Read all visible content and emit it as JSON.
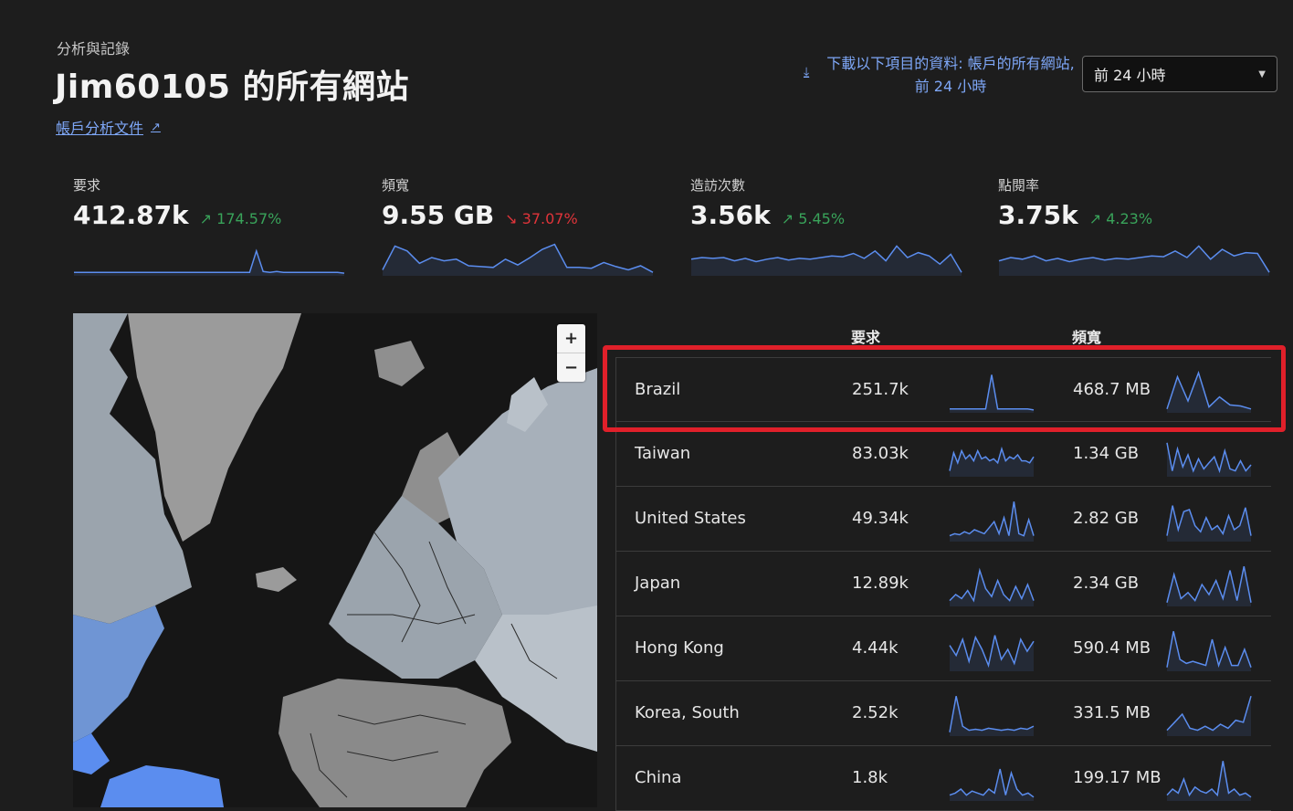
{
  "header": {
    "breadcrumb": "分析與記錄",
    "title": "Jim60105 的所有網站",
    "doc_link": "帳戶分析文件"
  },
  "download": {
    "icon": "download-icon",
    "text": "下載以下項目的資料: 帳戶的所有網站, 前 24 小時"
  },
  "time_range": {
    "selected": "前 24 小時"
  },
  "metrics": [
    {
      "label": "要求",
      "value": "412.87k",
      "change": "174.57%",
      "direction": "up",
      "spark": [
        2,
        2,
        2,
        2,
        2,
        2,
        2,
        2,
        2,
        2,
        2,
        2,
        2,
        2,
        2,
        2,
        2,
        2,
        2,
        2,
        2,
        2,
        2,
        2,
        2,
        2,
        2,
        28,
        3,
        2,
        3,
        2,
        2,
        2,
        2,
        2,
        2,
        2,
        2,
        2,
        1
      ]
    },
    {
      "label": "頻寬",
      "value": "9.55 GB",
      "change": "37.07%",
      "direction": "down",
      "spark": [
        5,
        34,
        28,
        13,
        20,
        16,
        18,
        10,
        9,
        8,
        18,
        11,
        20,
        30,
        36,
        8,
        8,
        7,
        14,
        9,
        5,
        10,
        2
      ]
    },
    {
      "label": "造訪次數",
      "value": "3.56k",
      "change": "5.45%",
      "direction": "up",
      "spark": [
        18,
        20,
        19,
        20,
        16,
        19,
        15,
        18,
        20,
        17,
        19,
        18,
        20,
        22,
        21,
        25,
        19,
        28,
        16,
        34,
        20,
        26,
        22,
        12,
        24,
        2
      ]
    },
    {
      "label": "點閱率",
      "value": "3.75k",
      "change": "4.23%",
      "direction": "up",
      "spark": [
        16,
        20,
        18,
        22,
        16,
        19,
        15,
        18,
        20,
        17,
        19,
        18,
        20,
        22,
        21,
        28,
        20,
        34,
        18,
        30,
        22,
        26,
        25,
        2
      ]
    }
  ],
  "map": {
    "zoom_in": "+",
    "zoom_out": "−"
  },
  "table": {
    "columns": {
      "requests": "要求",
      "bandwidth": "頻寬"
    },
    "rows": [
      {
        "country": "Brazil",
        "requests": "251.7k",
        "bandwidth": "468.7 MB",
        "req_spark": [
          2,
          2,
          2,
          2,
          2,
          2,
          2,
          36,
          2,
          2,
          2,
          2,
          2,
          2,
          1
        ],
        "bw_spark": [
          2,
          34,
          10,
          38,
          4,
          14,
          6,
          5,
          2
        ]
      },
      {
        "country": "Taiwan",
        "requests": "83.03k",
        "bandwidth": "1.34 GB",
        "req_spark": [
          4,
          22,
          12,
          24,
          16,
          20,
          14,
          24,
          16,
          18,
          14,
          16,
          12,
          26,
          14,
          18,
          16,
          20,
          14,
          14,
          12,
          18
        ],
        "bw_spark": [
          32,
          4,
          26,
          8,
          20,
          4,
          16,
          6,
          12,
          18,
          4,
          24,
          6,
          4,
          14,
          4,
          10
        ]
      },
      {
        "country": "United States",
        "requests": "49.34k",
        "bandwidth": "2.82 GB",
        "req_spark": [
          4,
          6,
          5,
          8,
          6,
          10,
          8,
          6,
          12,
          18,
          6,
          22,
          4,
          38,
          6,
          4,
          20,
          4
        ],
        "bw_spark": [
          4,
          34,
          10,
          28,
          30,
          14,
          8,
          22,
          10,
          14,
          6,
          24,
          10,
          14,
          32,
          4
        ]
      },
      {
        "country": "Japan",
        "requests": "12.89k",
        "bandwidth": "2.34 GB",
        "req_spark": [
          4,
          10,
          6,
          14,
          4,
          34,
          16,
          8,
          24,
          10,
          4,
          18,
          6,
          20,
          4
        ],
        "bw_spark": [
          2,
          30,
          6,
          12,
          4,
          20,
          10,
          24,
          6,
          34,
          4,
          38,
          2
        ]
      },
      {
        "country": "Hong Kong",
        "requests": "4.44k",
        "bandwidth": "590.4 MB",
        "req_spark": [
          24,
          14,
          30,
          8,
          32,
          20,
          4,
          34,
          10,
          20,
          6,
          30,
          18,
          28
        ],
        "bw_spark": [
          2,
          38,
          10,
          6,
          8,
          6,
          4,
          30,
          4,
          22,
          4,
          4,
          20,
          2
        ]
      },
      {
        "country": "Korea, South",
        "requests": "2.52k",
        "bandwidth": "331.5 MB",
        "req_spark": [
          2,
          38,
          8,
          4,
          5,
          4,
          6,
          5,
          4,
          5,
          4,
          6,
          5,
          8
        ],
        "bw_spark": [
          4,
          12,
          20,
          6,
          4,
          8,
          4,
          10,
          6,
          14,
          12,
          38
        ]
      },
      {
        "country": "China",
        "requests": "1.8k",
        "bandwidth": "199.17 MB",
        "req_spark": [
          4,
          6,
          10,
          4,
          8,
          6,
          4,
          10,
          6,
          30,
          4,
          26,
          10,
          4,
          6,
          2
        ],
        "bw_spark": [
          4,
          10,
          6,
          20,
          4,
          12,
          8,
          6,
          10,
          4,
          38,
          6,
          10,
          4,
          6,
          2
        ]
      }
    ]
  },
  "colors": {
    "accent": "#7ea7f7",
    "spark": "#5b8def",
    "up": "#39a35a",
    "down": "#e0343a",
    "highlight": "#e0202a"
  }
}
